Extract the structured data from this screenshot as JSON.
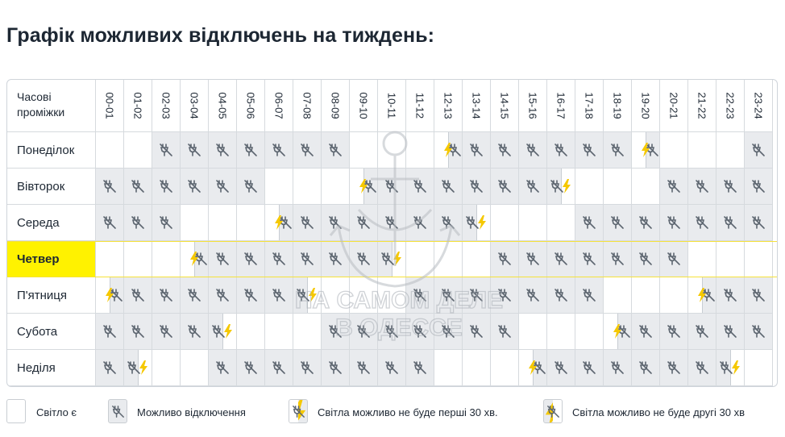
{
  "title": "Графік можливих відключень на тиждень:",
  "header_label": "Часові проміжки",
  "hours": [
    "00-01",
    "01-02",
    "02-03",
    "03-04",
    "04-05",
    "05-06",
    "06-07",
    "07-08",
    "08-09",
    "09-10",
    "10-11",
    "11-12",
    "12-13",
    "13-14",
    "14-15",
    "15-16",
    "16-17",
    "17-18",
    "18-19",
    "19-20",
    "20-21",
    "21-22",
    "22-23",
    "23-24"
  ],
  "highlight_day": 3,
  "days": [
    {
      "name": "Понеділок",
      "cells": [
        "light",
        "light",
        "off",
        "off",
        "off",
        "off",
        "off",
        "off",
        "off",
        "light",
        "light",
        "light",
        "first",
        "off",
        "off",
        "off",
        "off",
        "off",
        "off",
        "first",
        "light",
        "light",
        "light",
        "off"
      ]
    },
    {
      "name": "Вівторок",
      "cells": [
        "off",
        "off",
        "off",
        "off",
        "off",
        "off",
        "light",
        "light",
        "light",
        "first",
        "off",
        "off",
        "off",
        "off",
        "off",
        "off",
        "second",
        "light",
        "light",
        "light",
        "off",
        "off",
        "off",
        "off"
      ]
    },
    {
      "name": "Середа",
      "cells": [
        "off",
        "off",
        "off",
        "light",
        "light",
        "light",
        "first",
        "off",
        "off",
        "off",
        "off",
        "off",
        "off",
        "second",
        "light",
        "light",
        "light",
        "off",
        "off",
        "off",
        "off",
        "off",
        "off",
        "off"
      ]
    },
    {
      "name": "Четвер",
      "cells": [
        "light",
        "light",
        "light",
        "first",
        "off",
        "off",
        "off",
        "off",
        "off",
        "off",
        "second",
        "light",
        "light",
        "light",
        "off",
        "off",
        "off",
        "off",
        "off",
        "off",
        "off",
        "light",
        "light",
        "light"
      ]
    },
    {
      "name": "П'ятниця",
      "cells": [
        "first",
        "off",
        "off",
        "off",
        "off",
        "off",
        "off",
        "second",
        "light",
        "light",
        "light",
        "off",
        "off",
        "off",
        "off",
        "off",
        "off",
        "off",
        "light",
        "light",
        "light",
        "first",
        "off",
        "off"
      ]
    },
    {
      "name": "Субота",
      "cells": [
        "off",
        "off",
        "off",
        "off",
        "second",
        "light",
        "light",
        "light",
        "off",
        "off",
        "off",
        "off",
        "off",
        "off",
        "off",
        "light",
        "light",
        "light",
        "first",
        "off",
        "off",
        "off",
        "off",
        "off"
      ]
    },
    {
      "name": "Неділя",
      "cells": [
        "off",
        "second",
        "light",
        "light",
        "off",
        "off",
        "off",
        "off",
        "off",
        "off",
        "off",
        "off",
        "light",
        "light",
        "light",
        "first",
        "off",
        "off",
        "off",
        "off",
        "off",
        "off",
        "second",
        "light"
      ]
    }
  ],
  "legend": {
    "light": "Світло є",
    "possible": "Можливо відключення",
    "first": "Світла можливо не буде перші 30 хв.",
    "second": "Світла можливо не буде другі 30 хв"
  },
  "watermark": {
    "line1": "НА САМОМ ДЕЛЕ",
    "line2": "В ОДЕССЕ"
  },
  "colors": {
    "off_bg": "#e9ebee",
    "highlight": "#fff200",
    "bolt": "#f5c800",
    "border": "#d6dade"
  },
  "icons": {
    "possible": "plug-off-icon",
    "bolt": "lightning-bolt-icon"
  }
}
